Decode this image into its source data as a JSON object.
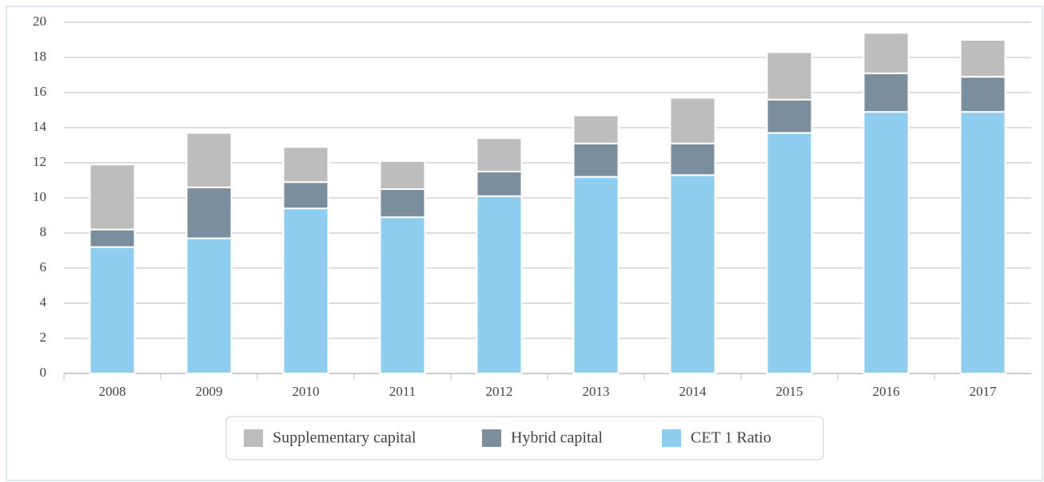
{
  "chart_data": {
    "type": "stacked_bar",
    "categories": [
      "2008",
      "2009",
      "2010",
      "2011",
      "2012",
      "2013",
      "2014",
      "2015",
      "2016",
      "2017"
    ],
    "series": [
      {
        "name": "CET 1 Ratio",
        "color": "#8ecdf0",
        "values": [
          7.2,
          7.7,
          9.4,
          8.9,
          10.1,
          11.2,
          11.3,
          13.7,
          14.9,
          14.9
        ]
      },
      {
        "name": "Hybrid capital",
        "color": "#7a8e9e",
        "values": [
          1.0,
          2.9,
          1.5,
          1.6,
          1.4,
          1.9,
          1.8,
          1.9,
          2.2,
          2.0
        ]
      },
      {
        "name": "Supplementary capital",
        "color": "#bdbdbd",
        "values": [
          3.7,
          3.1,
          2.0,
          1.6,
          1.9,
          1.6,
          2.6,
          2.7,
          2.3,
          2.1
        ]
      }
    ],
    "ylim": [
      0,
      20
    ],
    "yticks": [
      0,
      2,
      4,
      6,
      8,
      10,
      12,
      14,
      16,
      18,
      20
    ],
    "grid": true
  }
}
